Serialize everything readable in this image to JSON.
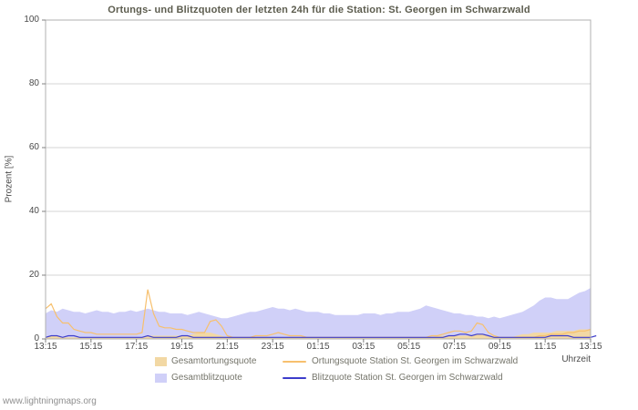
{
  "watermark": "www.lightningmaps.org",
  "chart_data": {
    "type": "area",
    "title": "Ortungs- und Blitzquoten der letzten 24h für die Station: St. Georgen im Schwarzwald",
    "ylabel": "Prozent  [%]",
    "xlabel": "Uhrzeit",
    "ylim": [
      0,
      100
    ],
    "yticks": [
      0,
      20,
      40,
      60,
      80,
      100
    ],
    "xtick_labels": [
      "13:15",
      "15:15",
      "17:15",
      "19:15",
      "21:15",
      "23:15",
      "01:15",
      "03:15",
      "05:15",
      "07:15",
      "09:15",
      "11:15",
      "13:15"
    ],
    "x_start": "13:15",
    "x_interval_minutes": 15,
    "grid": true,
    "legend_position": "bottom",
    "legend_order": [
      1,
      2,
      0,
      3
    ],
    "colors": {
      "grid": "#d4d4d4",
      "border": "#b0b0b0",
      "tick": "#808080",
      "axis_text": "#4a4a4a",
      "title_text": "#5c5c4e",
      "legend_text": "#74746a",
      "watermark_text": "#8f8f8f",
      "gesamtblitzquote": "#d0d0f8",
      "gesamtortungsquote": "#f2d8a4",
      "ortungsquote_station": "#f7c06e",
      "blitzquote_station": "#3d3dcb"
    },
    "series": [
      {
        "name": "Gesamtblitzquote",
        "render": "area",
        "color": "#d0d0f8",
        "values": [
          8,
          9,
          8.5,
          9.5,
          9,
          8.5,
          8.5,
          8,
          8.5,
          9,
          8.5,
          8.5,
          8,
          8.5,
          8.5,
          9,
          8.5,
          9,
          9.5,
          9,
          8.5,
          8.5,
          8,
          8,
          8,
          7.5,
          8,
          8.5,
          8,
          7.5,
          7,
          6.5,
          6.5,
          7,
          7.5,
          8,
          8.5,
          8.5,
          9,
          9.5,
          10,
          9.5,
          9.5,
          9,
          9.5,
          9,
          8.5,
          8.5,
          8.5,
          8,
          8,
          7.5,
          7.5,
          7.5,
          7.5,
          7.5,
          8,
          8,
          8,
          7.5,
          8,
          8,
          8.5,
          8.5,
          8.5,
          9,
          9.5,
          10.5,
          10,
          9.5,
          9,
          8.5,
          8,
          8,
          7.5,
          7.5,
          7,
          7,
          6.5,
          7,
          6.5,
          7,
          7.5,
          8,
          8.5,
          9.5,
          10.5,
          12,
          13,
          13,
          12.5,
          12.5,
          12.5,
          13.5,
          14.5,
          15,
          16
        ]
      },
      {
        "name": "Gesamtortungsquote",
        "render": "area",
        "color": "#f2d8a4",
        "values": [
          0.5,
          1,
          1,
          0.5,
          0.5,
          0.5,
          0.5,
          0.5,
          0.5,
          0.5,
          0.5,
          0.5,
          0.5,
          0.5,
          0.5,
          0.5,
          0.5,
          0.5,
          1,
          1,
          1,
          1,
          1,
          1,
          1,
          1,
          1.5,
          2,
          2,
          2,
          1.5,
          1,
          0.5,
          0.5,
          0.5,
          0.5,
          0.5,
          0.5,
          0.5,
          0.5,
          0.5,
          0.5,
          0.5,
          0.5,
          0.5,
          0.5,
          0.5,
          0.5,
          0.5,
          0.5,
          0.5,
          0.5,
          0.5,
          0.5,
          0.5,
          0.5,
          0.5,
          0.5,
          0.5,
          0.5,
          0.5,
          0.5,
          0.5,
          0.5,
          0.5,
          0.5,
          0.5,
          0.5,
          0.5,
          1,
          1,
          1,
          1,
          1,
          1,
          1,
          1.5,
          1.5,
          1,
          1,
          0.5,
          0.5,
          0.5,
          1,
          1.5,
          1.5,
          2,
          2,
          2,
          2,
          2.5,
          2.5,
          2.5,
          2.5,
          3,
          3,
          3
        ]
      },
      {
        "name": "Ortungsquote Station St. Georgen im Schwarzwald",
        "render": "line",
        "color": "#f7c06e",
        "values": [
          9.5,
          11,
          7,
          5,
          5,
          3,
          2.5,
          2,
          2,
          1.5,
          1.5,
          1.5,
          1.5,
          1.5,
          1.5,
          1.5,
          1.5,
          2,
          15.5,
          8,
          4,
          3.5,
          3.5,
          3,
          3,
          2.5,
          2,
          2,
          2,
          5.5,
          6,
          4,
          1,
          0.5,
          0.5,
          0.5,
          0.5,
          1,
          1,
          1,
          1.5,
          2,
          1.5,
          1,
          1,
          1,
          0.5,
          0.5,
          0.5,
          0.5,
          0.5,
          0.5,
          0.5,
          0.5,
          0.5,
          0.5,
          0.5,
          0.5,
          0.5,
          0.5,
          0.5,
          0.5,
          0.5,
          0.5,
          0.5,
          0.5,
          0.5,
          0.5,
          1,
          1,
          1.5,
          2,
          2.5,
          2.5,
          2,
          2.5,
          5,
          4.5,
          2,
          1,
          0.5,
          0.5,
          0.5,
          0.5,
          0.5,
          0.5,
          0.5,
          1,
          1,
          1.5,
          1.5,
          1.5,
          2,
          2,
          2.5,
          2.5,
          3
        ]
      },
      {
        "name": "Blitzquote Station St. Georgen im Schwarzwald",
        "render": "line",
        "color": "#3d3dcb",
        "values": [
          0.5,
          1,
          1,
          0.5,
          1,
          1,
          0.5,
          0.5,
          0.5,
          0.5,
          0.5,
          0.5,
          0.5,
          0.5,
          0.5,
          0.5,
          0.5,
          0.5,
          1,
          0.5,
          0.5,
          0.5,
          0.5,
          0.5,
          1,
          1,
          0.5,
          0.5,
          0.5,
          0.5,
          0.5,
          0.5,
          0.5,
          0.5,
          0.5,
          0.5,
          0.5,
          0.5,
          0.5,
          0.5,
          0.5,
          0.5,
          0.5,
          0.5,
          0.5,
          0.5,
          0.5,
          0.5,
          0.5,
          0.5,
          0.5,
          0.5,
          0.5,
          0.5,
          0.5,
          0.5,
          0.5,
          0.5,
          0.5,
          0.5,
          0.5,
          0.5,
          0.5,
          0.5,
          0.5,
          0.5,
          0.5,
          0.5,
          0.5,
          0.5,
          0.5,
          1,
          1,
          1.5,
          1.5,
          1,
          1.5,
          1.5,
          1,
          0.5,
          0.5,
          0.5,
          0.5,
          0.5,
          0.5,
          0.5,
          0.5,
          0.5,
          0.5,
          1,
          1,
          1,
          1,
          0.5,
          0.5,
          0.5,
          0.5,
          1
        ]
      }
    ]
  }
}
